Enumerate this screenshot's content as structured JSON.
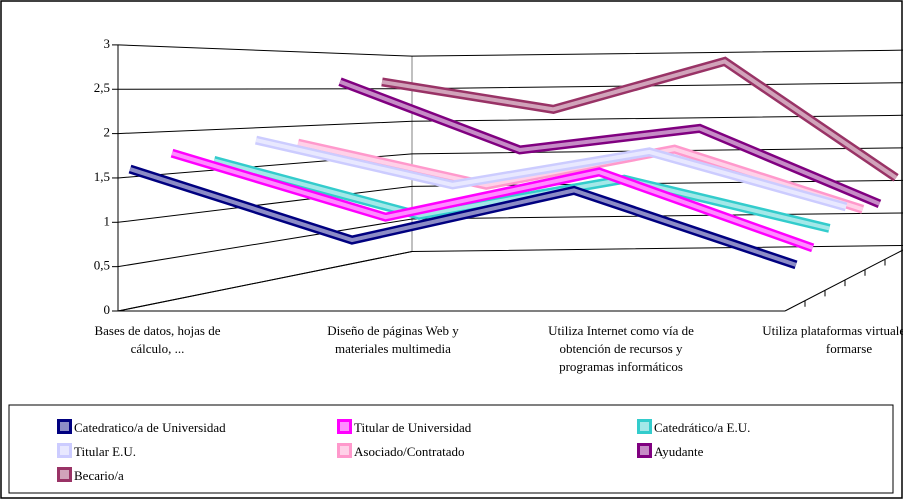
{
  "chart_data": {
    "type": "line3d",
    "categories": [
      "Bases de datos, hojas de cálculo, ...",
      "Diseño de páginas Web y materiales multimedia",
      "Utiliza Internet como vía de obtención de recursos y programas informáticos",
      "Utiliza plataformas virtuales para formarse"
    ],
    "ylim": [
      0,
      3
    ],
    "yticks": [
      0,
      {
        "value": 0.5,
        "label": "0,5"
      },
      1,
      {
        "value": 1.5,
        "label": "1,5"
      },
      2,
      {
        "value": 2.5,
        "label": "2,5"
      },
      3
    ],
    "grid": true,
    "legend": "bottom",
    "series": [
      {
        "name": "Catedratico/a de Universidad",
        "color": "#000080",
        "values": [
          1.6,
          0.8,
          1.36,
          0.52
        ]
      },
      {
        "name": "Titular de Universidad",
        "color": "#ff00ff",
        "values": [
          1.75,
          1.0,
          1.53,
          0.64
        ]
      },
      {
        "name": "Catedrático/a E.U.",
        "color": "#33cccc",
        "values": [
          1.63,
          0.96,
          1.4,
          0.8
        ]
      },
      {
        "name": "Titular E.U.",
        "color": "#ccccff",
        "values": [
          1.85,
          1.28,
          1.7,
          1.0
        ]
      },
      {
        "name": "Asociado/Contratado",
        "color": "#ff99cc",
        "values": [
          1.78,
          1.22,
          1.7,
          0.9
        ]
      },
      {
        "name": "Ayudante",
        "color": "#800080",
        "values": [
          2.6,
          1.65,
          1.95,
          0.9
        ]
      },
      {
        "name": "Becario/a",
        "color": "#993366",
        "values": [
          2.6,
          2.2,
          2.9,
          1.2
        ]
      }
    ]
  }
}
